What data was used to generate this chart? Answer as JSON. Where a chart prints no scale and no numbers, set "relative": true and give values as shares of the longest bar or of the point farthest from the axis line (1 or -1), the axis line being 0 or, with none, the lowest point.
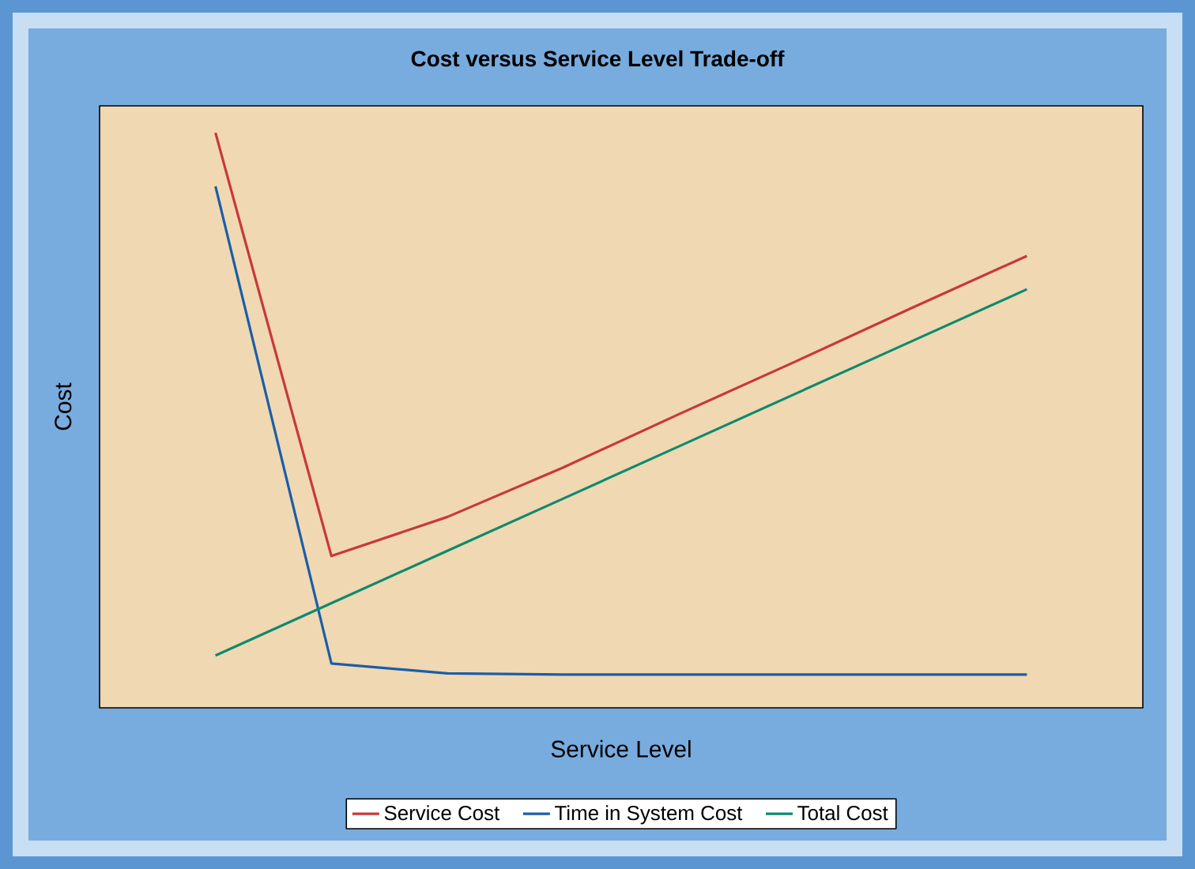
{
  "chart_data": {
    "type": "line",
    "title": "Cost versus Service Level Trade-off",
    "xlabel": "Service Level",
    "ylabel": "Cost",
    "relative": true,
    "legend": "bottom",
    "marker": "none",
    "line_style": "solid",
    "categories": [
      null,
      null,
      null,
      null,
      null,
      null,
      null,
      null
    ],
    "series": [
      {
        "name": "Service Cost",
        "color": "#c8383c",
        "values": [
          1,
          0.264,
          0.332,
          0.418,
          0.511,
          0.602,
          0.695,
          0.786
        ]
      },
      {
        "name": "Time in System Cost",
        "color": "#1a5ea8",
        "values": [
          0.907,
          0.077,
          0.06,
          0.058,
          0.058,
          0.058,
          0.058,
          0.058
        ]
      },
      {
        "name": "Total Cost",
        "color": "#0e8a6e",
        "values": [
          0.091,
          0.182,
          0.273,
          0.364,
          0.455,
          0.546,
          0.637,
          0.728
        ]
      }
    ]
  }
}
